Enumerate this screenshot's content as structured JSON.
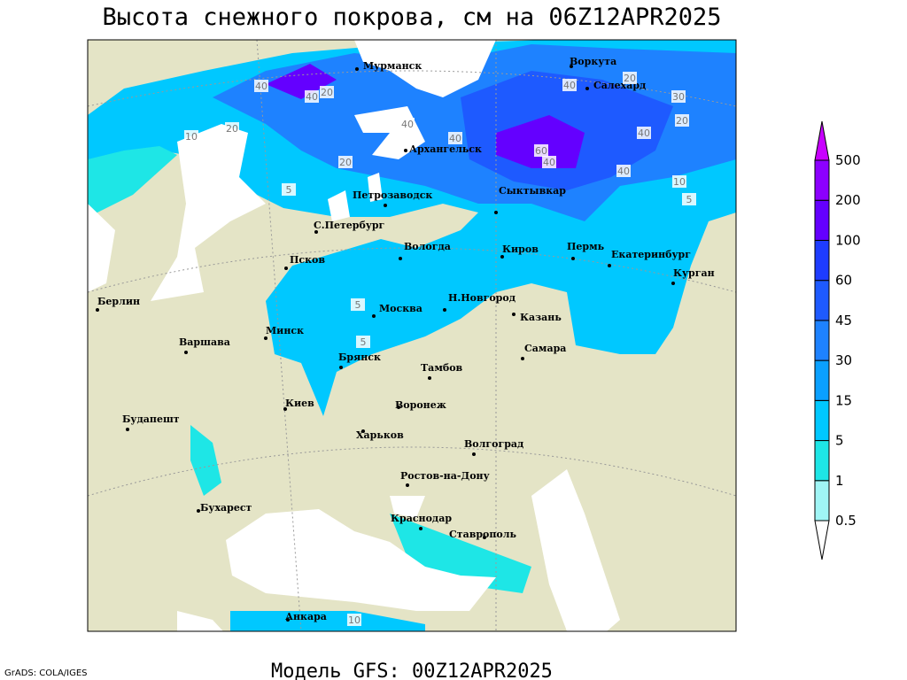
{
  "title": "Высота снежного покрова, см на 06Z12APR2025",
  "subtitle": "Модель GFS: 00Z12APR2025",
  "credit": "GrADS: COLA/IGES",
  "cities": [
    "Мурманск",
    "Воркута",
    "Салехард",
    "Архангельск",
    "Петрозаводск",
    "Сыктывкар",
    "С.Петербург",
    "Вологда",
    "Киров",
    "Пермь",
    "Екатеринбург",
    "Курган",
    "Псков",
    "Берлин",
    "Н.Новгород",
    "Москва",
    "Казань",
    "Минск",
    "Варшава",
    "Самара",
    "Брянск",
    "Тамбов",
    "Киев",
    "Воронеж",
    "Будапешт",
    "Харьков",
    "Волгоград",
    "Ростов-на-Дону",
    "Бухарест",
    "Краснодар",
    "Ставрополь",
    "Анкара"
  ],
  "contour_labels": [
    40,
    20,
    40,
    10,
    20,
    40,
    40,
    20,
    5,
    40,
    20,
    30,
    20,
    60,
    40,
    40,
    40,
    10,
    5,
    5,
    5,
    10
  ],
  "legend": {
    "levels": [
      0.5,
      1,
      5,
      15,
      30,
      45,
      60,
      100,
      200,
      500
    ],
    "colors": [
      "#ffffff",
      "#a0f5f5",
      "#1ee6e6",
      "#00c8ff",
      "#0aa0ff",
      "#1e82ff",
      "#1e5aff",
      "#1e3cff",
      "#6400ff",
      "#8c00ff",
      "#c800ff"
    ]
  }
}
